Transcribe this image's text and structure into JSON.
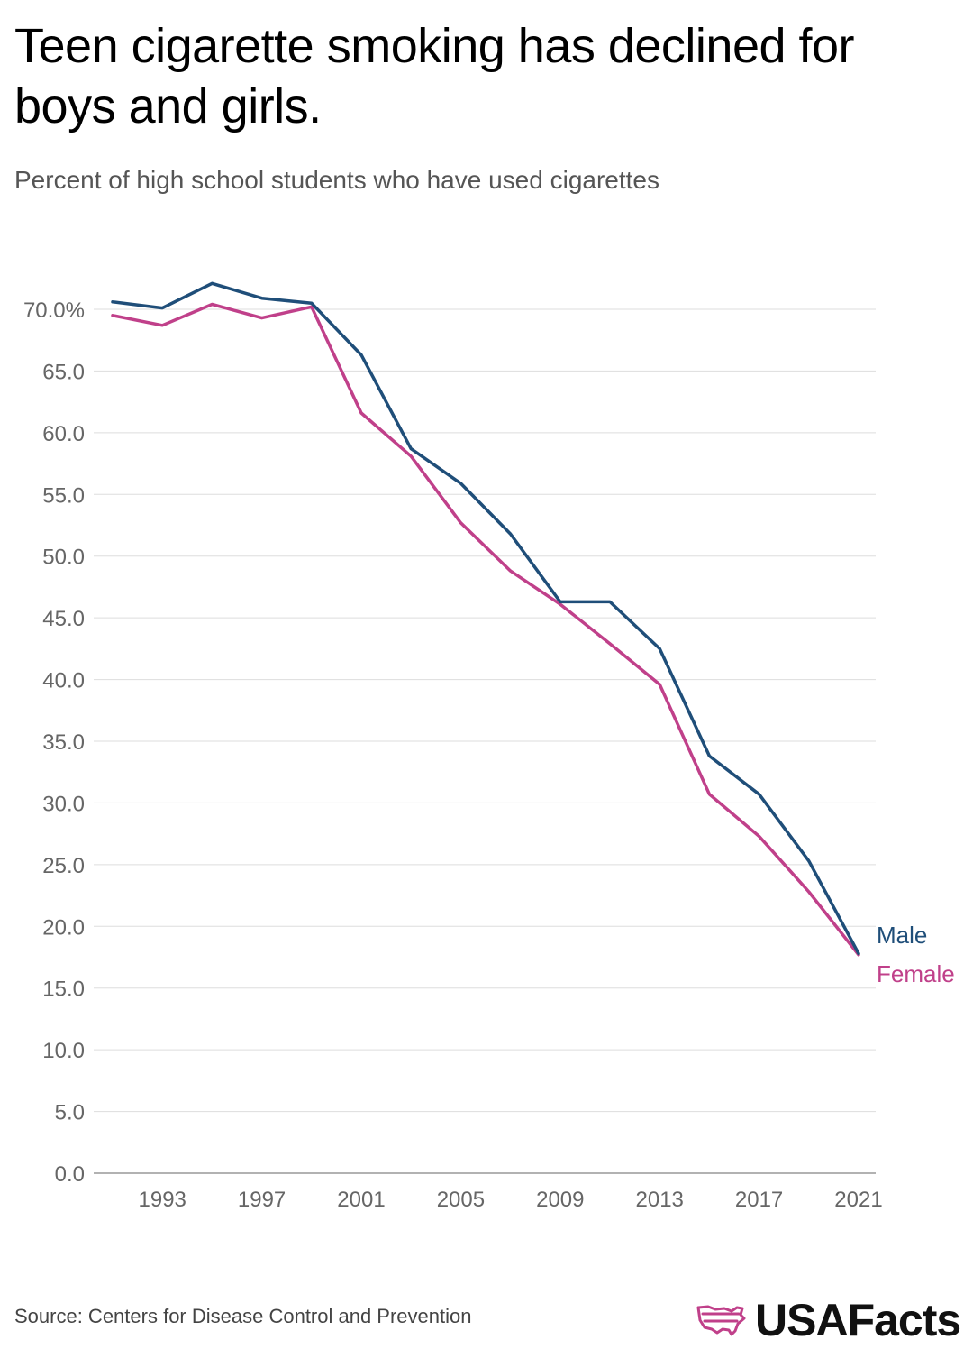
{
  "title": "Teen cigarette smoking has declined for boys and girls.",
  "subtitle": "Percent of high school students who have used cigarettes",
  "source": "Source: Centers for Disease Control and Prevention",
  "brand": "USAFacts",
  "colors": {
    "male": "#1f4e79",
    "female": "#c0408a",
    "grid": "#dddddd",
    "axis": "#999999",
    "tick_text": "#666666",
    "brand_icon": "#c0408a"
  },
  "chart_data": {
    "type": "line",
    "title": "Teen cigarette smoking has declined for boys and girls.",
    "ylabel": "Percent of high school students who have used cigarettes",
    "xlabel": "",
    "x": [
      1991,
      1993,
      1995,
      1997,
      1999,
      2001,
      2003,
      2005,
      2007,
      2009,
      2011,
      2013,
      2015,
      2017,
      2019,
      2021
    ],
    "series": [
      {
        "name": "Male",
        "values": [
          70.6,
          70.1,
          72.1,
          70.9,
          70.5,
          66.3,
          58.7,
          55.9,
          51.8,
          46.3,
          46.3,
          42.5,
          33.8,
          30.7,
          25.3,
          17.8
        ]
      },
      {
        "name": "Female",
        "values": [
          69.5,
          68.7,
          70.4,
          69.3,
          70.2,
          61.6,
          58.1,
          52.7,
          48.8,
          46.1,
          42.9,
          39.6,
          30.7,
          27.3,
          22.8,
          17.7
        ]
      }
    ],
    "xlim": [
      1990,
      2021.8
    ],
    "ylim": [
      0,
      70
    ],
    "yticks": [
      0,
      5,
      10,
      15,
      20,
      25,
      30,
      35,
      40,
      45,
      50,
      55,
      60,
      65,
      70
    ],
    "ytick_labels": [
      "0.0",
      "5.0",
      "10.0",
      "15.0",
      "20.0",
      "25.0",
      "30.0",
      "35.0",
      "40.0",
      "45.0",
      "50.0",
      "55.0",
      "60.0",
      "65.0",
      "70.0%"
    ],
    "xticks": [
      1993,
      1997,
      2001,
      2005,
      2009,
      2013,
      2017,
      2021
    ],
    "xtick_labels": [
      "1993",
      "1997",
      "2001",
      "2005",
      "2009",
      "2013",
      "2017",
      "2021"
    ],
    "grid": true,
    "legend": "end-of-line labels"
  }
}
